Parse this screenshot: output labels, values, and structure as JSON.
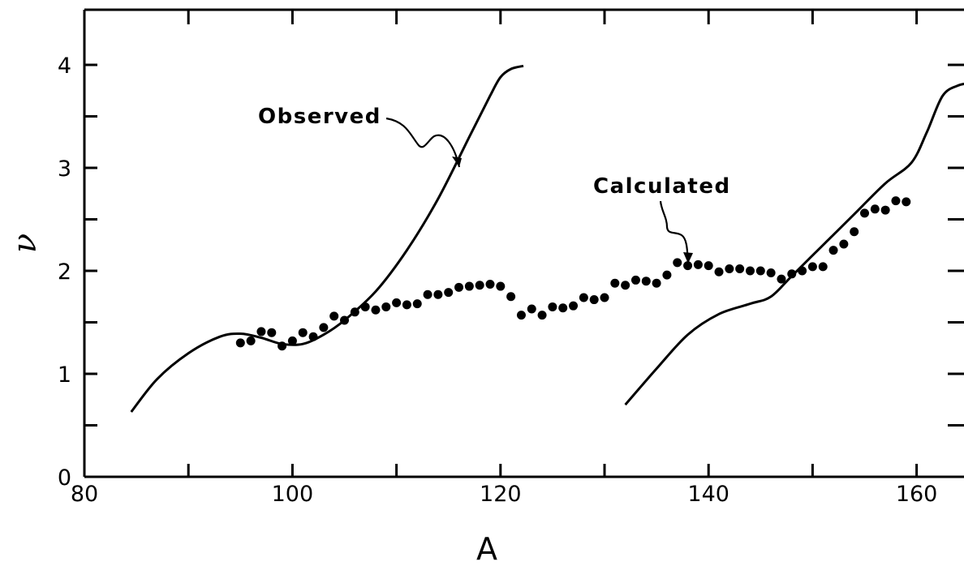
{
  "chart_data": {
    "type": "scatter",
    "title": "",
    "xlabel": "A",
    "ylabel": "ν",
    "xlim": [
      80,
      165
    ],
    "ylim": [
      0,
      4.5
    ],
    "x_ticks": [
      80,
      100,
      120,
      140,
      160
    ],
    "y_ticks": [
      0,
      1,
      2,
      3,
      4
    ],
    "grid": false,
    "annotations": [
      {
        "text": "Observed",
        "points_to": "observed curve"
      },
      {
        "text": "Calculated",
        "points_to": "calculated points"
      }
    ],
    "series": [
      {
        "name": "Observed",
        "kind": "line",
        "segments": [
          {
            "x": [
              84.5,
              87,
              90,
              93,
              95,
              97,
              99,
              101,
              103,
              105,
              108,
              111,
              114,
              117,
              119,
              120,
              121,
              122.2
            ],
            "y": [
              0.63,
              0.95,
              1.2,
              1.36,
              1.39,
              1.35,
              1.29,
              1.29,
              1.38,
              1.52,
              1.8,
              2.2,
              2.7,
              3.3,
              3.7,
              3.88,
              3.96,
              3.99
            ]
          },
          {
            "x": [
              132,
              135,
              138,
              141,
              144,
              146,
              148,
              151,
              154,
              157,
              159.5,
              161,
              162.5,
              164,
              165
            ],
            "y": [
              0.7,
              1.05,
              1.38,
              1.58,
              1.68,
              1.75,
              1.95,
              2.25,
              2.55,
              2.85,
              3.05,
              3.35,
              3.7,
              3.8,
              3.82
            ]
          }
        ]
      },
      {
        "name": "Calculated",
        "kind": "points",
        "x": [
          95,
          96,
          97,
          98,
          99,
          100,
          101,
          102,
          103,
          104,
          105,
          106,
          107,
          108,
          109,
          110,
          111,
          112,
          113,
          114,
          115,
          116,
          117,
          118,
          119,
          120,
          121,
          122,
          123,
          124,
          125,
          126,
          127,
          128,
          129,
          130,
          131,
          132,
          133,
          134,
          135,
          136,
          137,
          138,
          139,
          140,
          141,
          142,
          143,
          144,
          145,
          146,
          147,
          148,
          149,
          150,
          151,
          152,
          153,
          154,
          155,
          156,
          157,
          158,
          159
        ],
        "y": [
          1.3,
          1.32,
          1.41,
          1.4,
          1.27,
          1.32,
          1.4,
          1.36,
          1.45,
          1.56,
          1.52,
          1.6,
          1.65,
          1.62,
          1.65,
          1.69,
          1.67,
          1.68,
          1.77,
          1.77,
          1.79,
          1.84,
          1.85,
          1.86,
          1.87,
          1.85,
          1.75,
          1.57,
          1.63,
          1.57,
          1.65,
          1.64,
          1.66,
          1.74,
          1.72,
          1.74,
          1.88,
          1.86,
          1.91,
          1.9,
          1.88,
          1.96,
          2.08,
          2.05,
          2.06,
          2.05,
          1.99,
          2.02,
          2.02,
          2.0,
          2.0,
          1.98,
          1.92,
          1.97,
          2.0,
          2.04,
          2.04,
          2.2,
          2.26,
          2.38,
          2.56,
          2.6,
          2.59,
          2.68,
          2.67
        ]
      }
    ]
  }
}
